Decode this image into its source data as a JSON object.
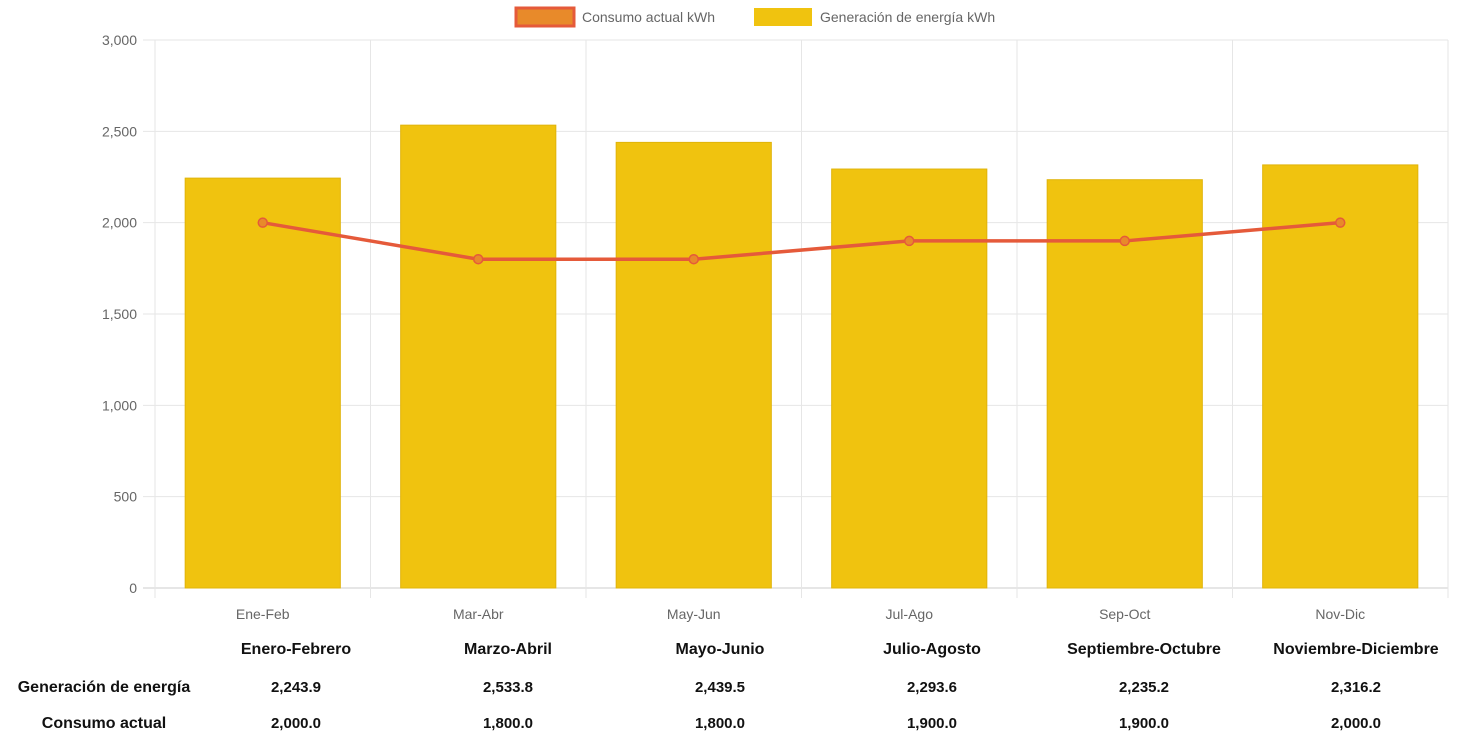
{
  "chart_data": {
    "type": "bar",
    "categories": [
      "Ene-Feb",
      "Mar-Abr",
      "May-Jun",
      "Jul-Ago",
      "Sep-Oct",
      "Nov-Dic"
    ],
    "series": [
      {
        "name": "Generación de energía kWh",
        "kind": "bar",
        "color": "#f0c30f",
        "values": [
          2243.9,
          2533.8,
          2439.5,
          2293.6,
          2235.2,
          2316.2
        ]
      },
      {
        "name": "Consumo actual kWh",
        "kind": "line",
        "color": "#e55a3a",
        "fill": "#e88a2a",
        "values": [
          2000,
          1800,
          1800,
          1900,
          1900,
          2000
        ]
      }
    ],
    "ylim": [
      0,
      3000
    ],
    "yticks": [
      "0",
      "500",
      "1,000",
      "1,500",
      "2,000",
      "2,500",
      "3,000"
    ],
    "legend_position": "top",
    "grid": true
  },
  "table": {
    "headers": [
      "Enero-Febrero",
      "Marzo-Abril",
      "Mayo-Junio",
      "Julio-Agosto",
      "Septiembre-Octubre",
      "Noviembre-Diciembre"
    ],
    "rows": [
      {
        "label": "Generación de energía",
        "values": [
          "2,243.9",
          "2,533.8",
          "2,439.5",
          "2,293.6",
          "2,235.2",
          "2,316.2"
        ]
      },
      {
        "label": "Consumo actual",
        "values": [
          "2,000.0",
          "1,800.0",
          "1,800.0",
          "1,900.0",
          "1,900.0",
          "2,000.0"
        ]
      }
    ]
  }
}
